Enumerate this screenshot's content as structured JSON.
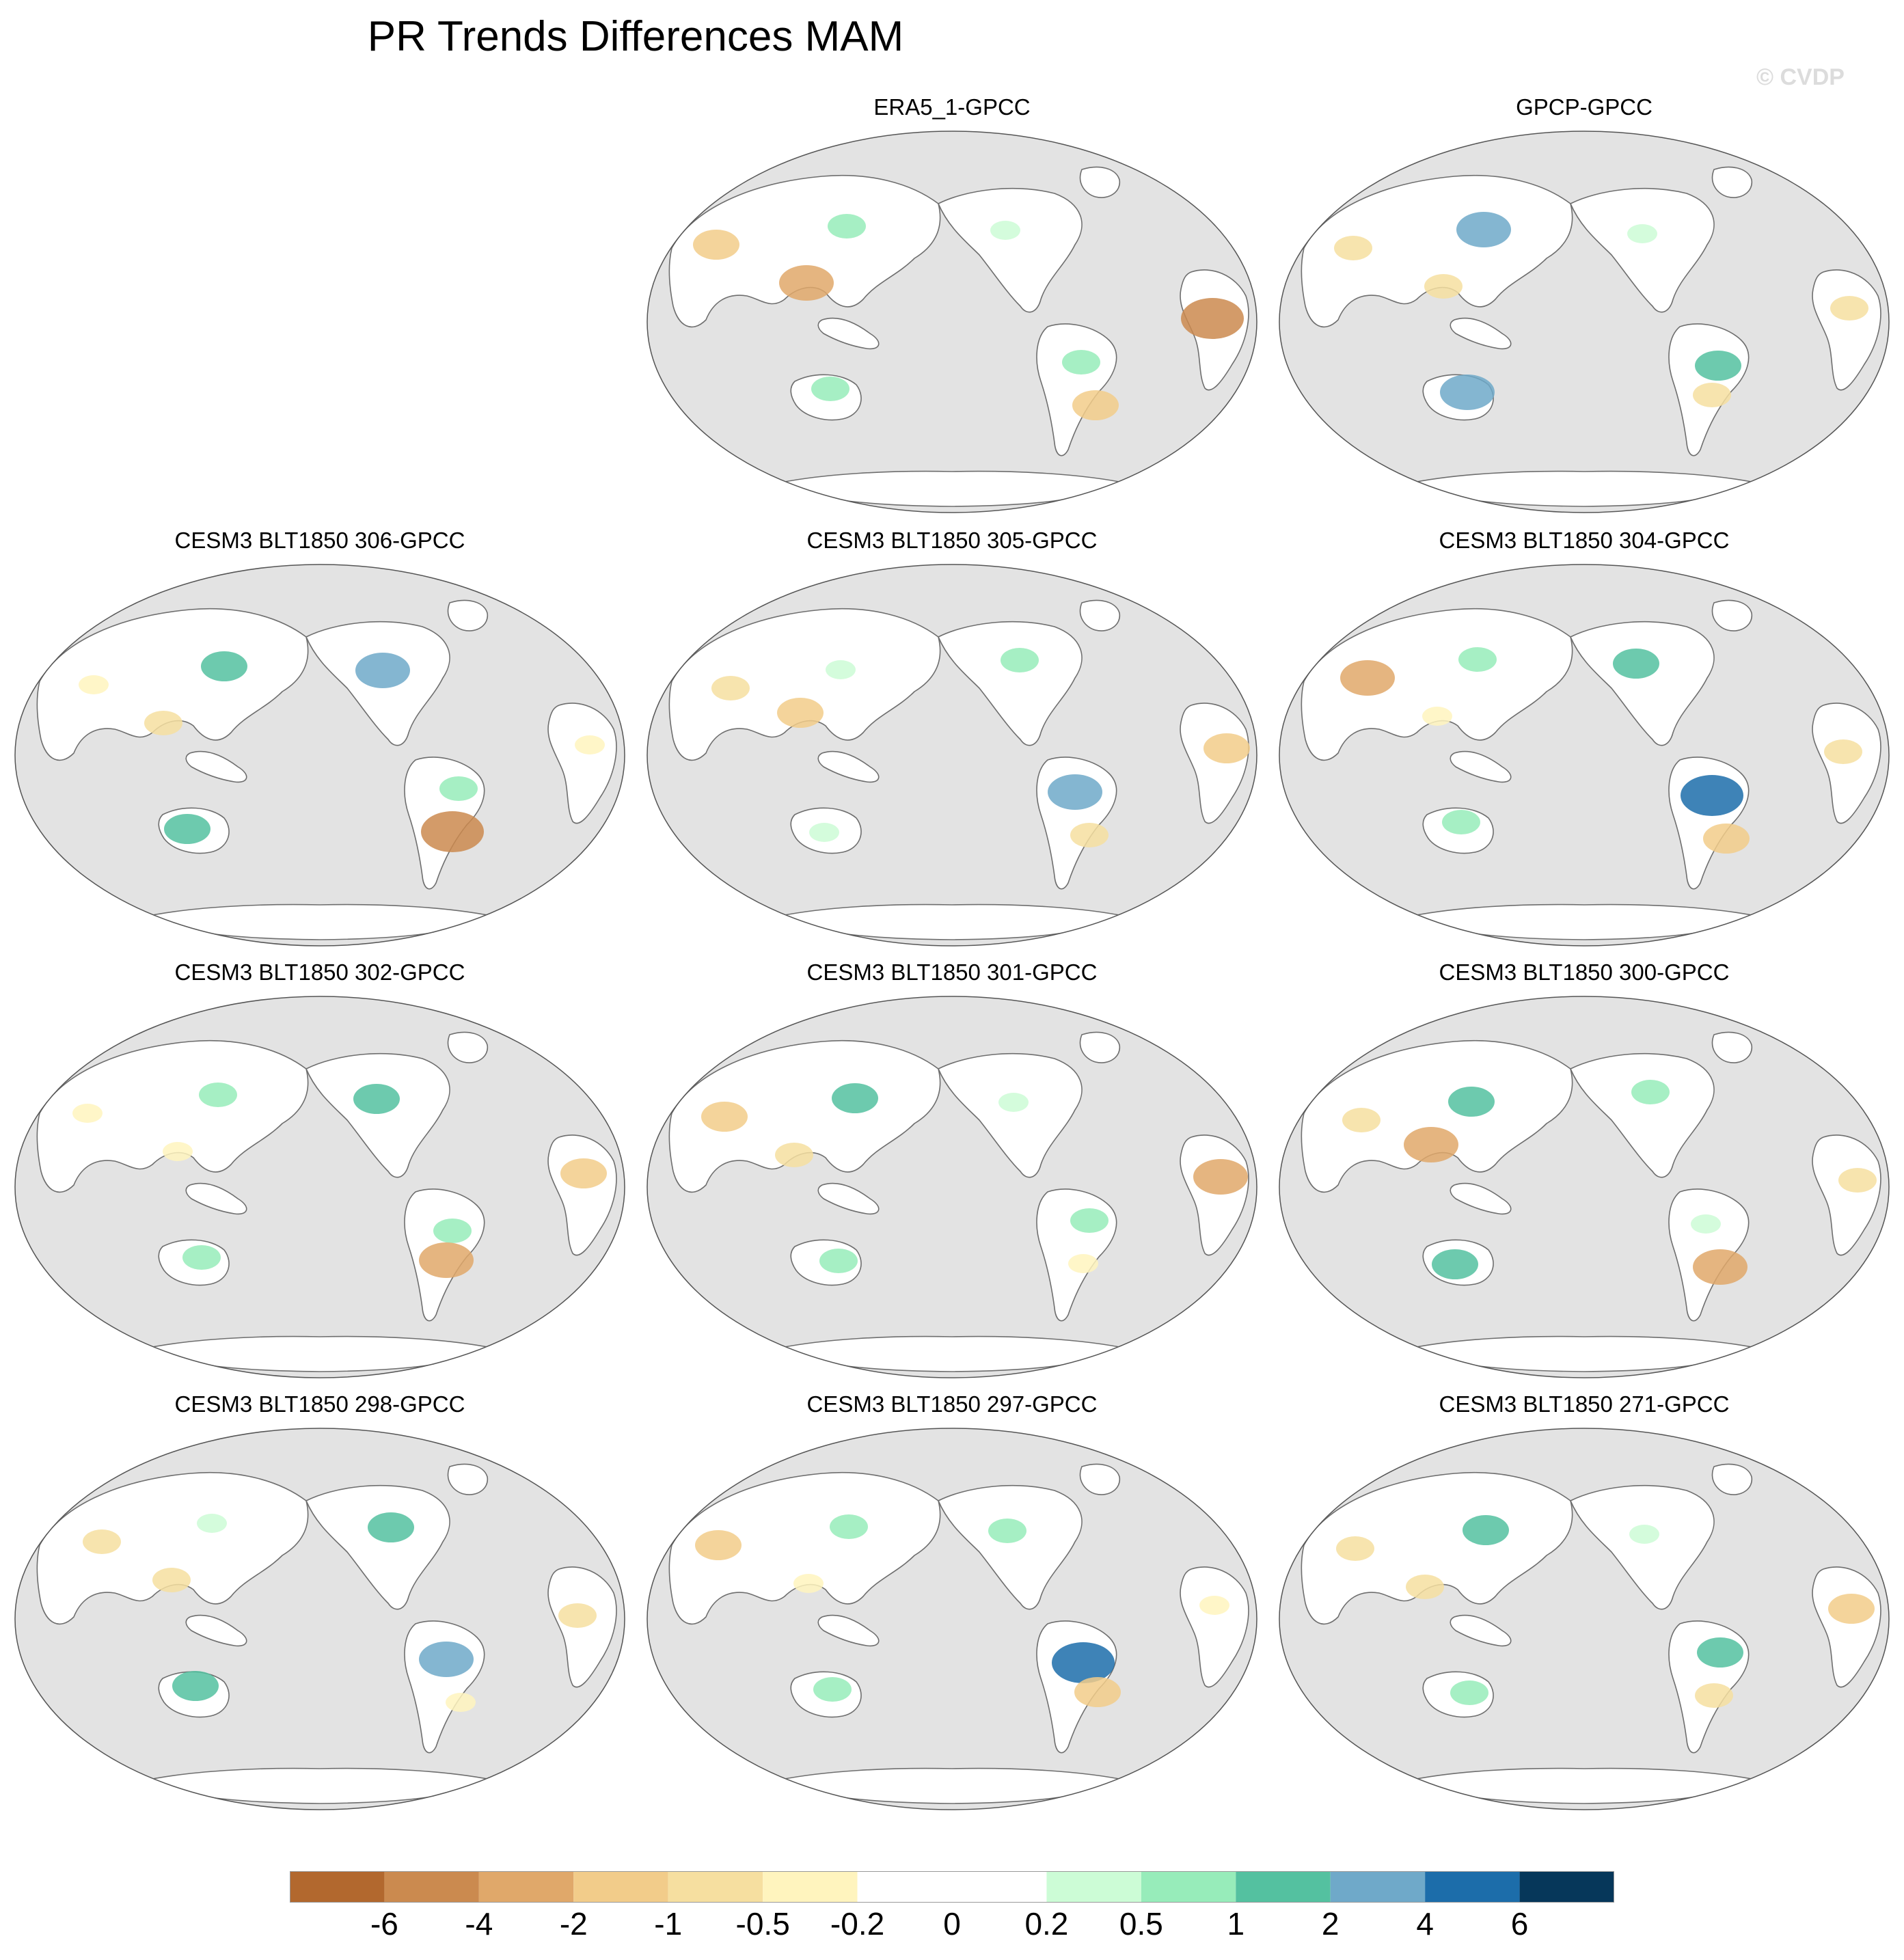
{
  "title": "PR Trends Differences MAM",
  "watermark": "© CVDP",
  "panels": [
    {
      "label": "ERA5_1-GPCC",
      "row": 0,
      "col": 1,
      "pattern": [
        2,
        1,
        3,
        0,
        1,
        2,
        4,
        1
      ]
    },
    {
      "label": "GPCP-GPCC",
      "row": 0,
      "col": 2,
      "pattern": [
        1,
        3,
        1,
        0,
        2,
        1,
        1,
        3
      ]
    },
    {
      "label": "CESM3 BLT1850 306-GPCC",
      "row": 1,
      "col": 0,
      "pattern": [
        0,
        2,
        1,
        3,
        1,
        4,
        0,
        2
      ]
    },
    {
      "label": "CESM3 BLT1850 305-GPCC",
      "row": 1,
      "col": 1,
      "pattern": [
        1,
        0,
        2,
        1,
        3,
        1,
        2,
        0
      ]
    },
    {
      "label": "CESM3 BLT1850 304-GPCC",
      "row": 1,
      "col": 2,
      "pattern": [
        3,
        1,
        0,
        2,
        4,
        2,
        1,
        1
      ]
    },
    {
      "label": "CESM3 BLT1850 302-GPCC",
      "row": 2,
      "col": 0,
      "pattern": [
        0,
        1,
        0,
        2,
        1,
        3,
        2,
        1
      ]
    },
    {
      "label": "CESM3 BLT1850 301-GPCC",
      "row": 2,
      "col": 1,
      "pattern": [
        2,
        2,
        1,
        0,
        1,
        0,
        3,
        1
      ]
    },
    {
      "label": "CESM3 BLT1850 300-GPCC",
      "row": 2,
      "col": 2,
      "pattern": [
        1,
        2,
        3,
        1,
        0,
        3,
        1,
        2
      ]
    },
    {
      "label": "CESM3 BLT1850 298-GPCC",
      "row": 3,
      "col": 0,
      "pattern": [
        1,
        0,
        1,
        2,
        3,
        0,
        1,
        2
      ]
    },
    {
      "label": "CESM3 BLT1850 297-GPCC",
      "row": 3,
      "col": 1,
      "pattern": [
        2,
        1,
        0,
        1,
        4,
        2,
        0,
        1
      ]
    },
    {
      "label": "CESM3 BLT1850 271-GPCC",
      "row": 3,
      "col": 2,
      "pattern": [
        1,
        2,
        1,
        0,
        2,
        1,
        2,
        1
      ]
    }
  ],
  "colorbar": {
    "colors": [
      "#b2682e",
      "#cb8a4f",
      "#e0a86a",
      "#f2cc8a",
      "#f6dfa0",
      "#fff4be",
      "#ffffff",
      "#ffffff",
      "#ccfcd6",
      "#97ecba",
      "#54c1a0",
      "#6fa9c9",
      "#1c6daa",
      "#06375a"
    ],
    "tick_labels": [
      "-6",
      "-4",
      "-2",
      "-1",
      "-0.5",
      "-0.2",
      "0",
      "0.2",
      "0.5",
      "1",
      "2",
      "4",
      "6"
    ]
  },
  "map_colors": {
    "ocean": "#e3e3e3",
    "land": "#ffffff",
    "coast": "#6e6e6e"
  }
}
